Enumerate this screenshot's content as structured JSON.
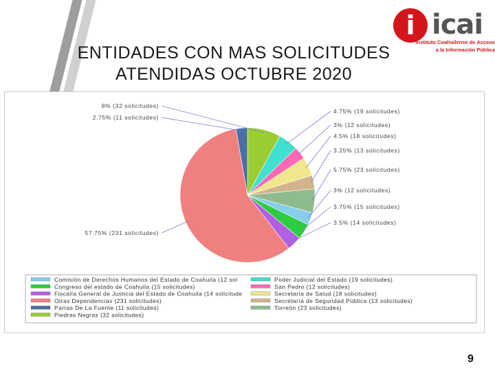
{
  "slide": {
    "title_line1": "ENTIDADES CON MAS SOLICITUDES",
    "title_line2": "ATENDIDAS OCTUBRE 2020",
    "page_number": "9"
  },
  "logo": {
    "mark": "i",
    "word": "icai",
    "subtitle_line1": "Instituto Coahuilense de Acceso",
    "subtitle_line2": "a la Información Pública",
    "color": "#d4161c"
  },
  "chart_data": {
    "type": "pie",
    "unit": "solicitudes",
    "slices": [
      {
        "name": "Comisión de Derechos Humanos del Estado de Coahuila (12 sol",
        "value": 12,
        "label": "3% (12 solicitudes)",
        "color": "#87ceeb"
      },
      {
        "name": "Congreso del estado de Coahuila (15 solicitudes)",
        "value": 15,
        "label": "3.75% (15 solicitudes)",
        "color": "#2ecc40"
      },
      {
        "name": "Fiscalía General de Justicia del Estado de Coahuila (14 solicitude",
        "value": 14,
        "label": "3.5% (14 solicitudes)",
        "color": "#b060e0"
      },
      {
        "name": "Otras Dependencias (231 solicitudes)",
        "value": 231,
        "label": "57.75% (231 solicitudes)",
        "color": "#f08080"
      },
      {
        "name": "Parras De La Fuente (11 solicitudes)",
        "value": 11,
        "label": "2.75% (11 solicitudes)",
        "color": "#4a6fa5"
      },
      {
        "name": "Piedras Negras (32 solicitudes)",
        "value": 32,
        "label": "8% (32 solicitudes)",
        "color": "#9acd32"
      },
      {
        "name": "Poder Judicial del Estado (19 solicitudes)",
        "value": 19,
        "label": "4.75% (19 solicitudes)",
        "color": "#40e0d0"
      },
      {
        "name": "San Pedro (12 solicitudes)",
        "value": 12,
        "label": "3% (12 solicitudes)",
        "color": "#ff69b4"
      },
      {
        "name": "Secretaría de Salud (18 solicitudes)",
        "value": 18,
        "label": "4.5% (18 solicitudes)",
        "color": "#f0e68c"
      },
      {
        "name": "Secretaría de Seguridad Pública (13 solicitudes)",
        "value": 13,
        "label": "3.25% (13 solicitudes)",
        "color": "#d2b48c"
      },
      {
        "name": "Torreón (23 solicitudes)",
        "value": 23,
        "label": "5.75% (23 solicitudes)",
        "color": "#8fbc8f"
      }
    ],
    "legend_placement": "bottom"
  }
}
